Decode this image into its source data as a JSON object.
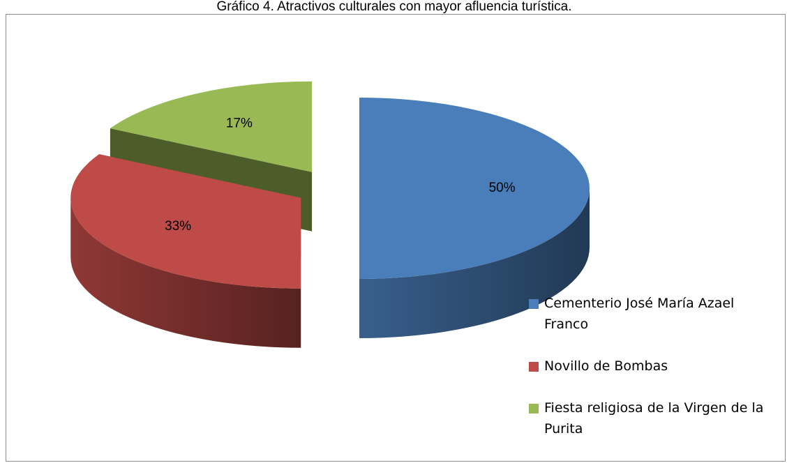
{
  "chart_data": {
    "type": "pie",
    "title": "Gráfico 4. Atractivos culturales con mayor afluencia turística.",
    "categories": [
      "Cementerio José María Azael Franco",
      "Novillo de Bombas",
      "Fiesta religiosa de la Virgen de la Purita"
    ],
    "values": [
      50,
      33,
      17
    ],
    "value_labels": [
      "50%",
      "33%",
      "17%"
    ],
    "colors": [
      "#4a7ebb",
      "#be4b48",
      "#98b954"
    ],
    "legend": "right"
  }
}
